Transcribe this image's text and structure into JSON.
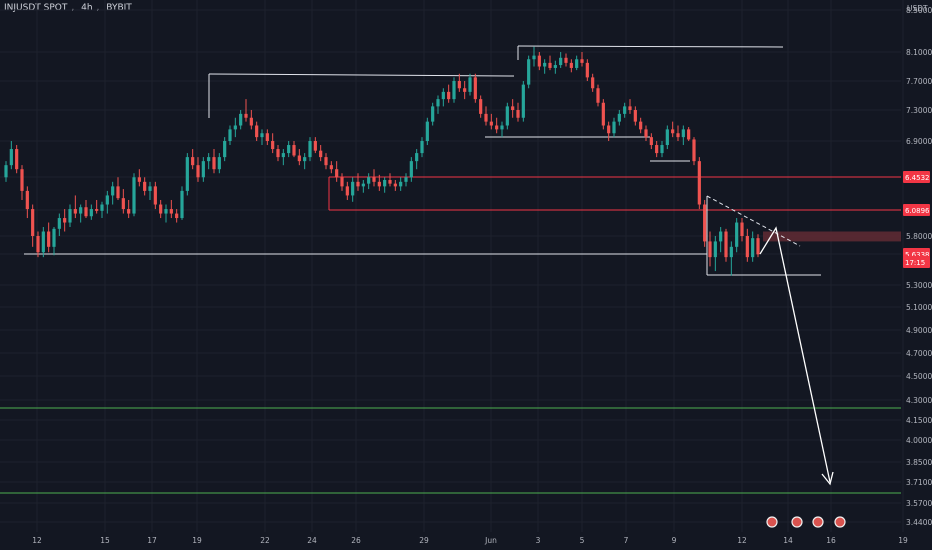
{
  "header": {
    "symbol": "INJUSDT SPOT",
    "interval": "4h",
    "exchange": "BYBIT"
  },
  "currency": "USDT",
  "colors": {
    "bg": "#131722",
    "grid": "#1e222d",
    "up": "#26a69a",
    "down": "#ef5350",
    "white": "#ffffff",
    "red_line": "#f23645",
    "green_line": "#4caf50",
    "axis_text": "#b2b5be"
  },
  "chart_data": {
    "type": "candlestick",
    "y_ticks": [
      "8.5000",
      "8.1000",
      "7.7000",
      "7.3000",
      "6.9000",
      "6.4532",
      "6.0896",
      "5.8000",
      "5.6338",
      "5.3000",
      "5.1000",
      "4.9000",
      "4.7000",
      "4.5000",
      "4.3000",
      "4.1500",
      "4.0000",
      "3.8500",
      "3.7100",
      "3.5700",
      "3.4400"
    ],
    "x_ticks": [
      "12",
      "15",
      "17",
      "19",
      "22",
      "24",
      "26",
      "29",
      "Jun",
      "3",
      "5",
      "7",
      "9",
      "12",
      "14",
      "16",
      "19"
    ],
    "price_labels": [
      {
        "text": "6.4532",
        "value": 6.4532,
        "color": "#f23645"
      },
      {
        "text": "6.0896",
        "value": 6.0896,
        "color": "#f23645"
      },
      {
        "text": "5.6338",
        "value": 5.6338,
        "color": "#f23645"
      },
      {
        "text": "17:15",
        "value": 5.555,
        "color": "#f23645"
      }
    ],
    "last_price": 5.6338,
    "horizontal_lines": [
      {
        "value": 6.4532,
        "from": "26",
        "color": "red"
      },
      {
        "value": 6.0896,
        "from": "26",
        "color": "red"
      },
      {
        "value": 4.25,
        "color": "green"
      },
      {
        "value": 3.62,
        "color": "green"
      }
    ],
    "resistance_zone": [
      5.75,
      5.85
    ],
    "candles": [
      [
        6.45,
        6.65,
        6.4,
        6.6
      ],
      [
        6.6,
        6.9,
        6.55,
        6.8
      ],
      [
        6.8,
        6.85,
        6.5,
        6.55
      ],
      [
        6.55,
        6.6,
        6.2,
        6.3
      ],
      [
        6.3,
        6.35,
        6.0,
        6.1
      ],
      [
        6.1,
        6.15,
        5.7,
        5.8
      ],
      [
        5.8,
        5.85,
        5.6,
        5.65
      ],
      [
        5.65,
        5.9,
        5.6,
        5.85
      ],
      [
        5.85,
        5.95,
        5.65,
        5.7
      ],
      [
        5.7,
        5.9,
        5.62,
        5.88
      ],
      [
        5.88,
        6.05,
        5.8,
        6.0
      ],
      [
        6.0,
        6.1,
        5.85,
        5.95
      ],
      [
        5.95,
        6.15,
        5.9,
        6.1
      ],
      [
        6.1,
        6.25,
        6.0,
        6.05
      ],
      [
        6.05,
        6.15,
        5.95,
        6.12
      ],
      [
        6.12,
        6.2,
        6.0,
        6.02
      ],
      [
        6.02,
        6.15,
        5.98,
        6.1
      ],
      [
        6.1,
        6.2,
        6.05,
        6.08
      ],
      [
        6.08,
        6.18,
        6.0,
        6.15
      ],
      [
        6.15,
        6.3,
        6.05,
        6.25
      ],
      [
        6.25,
        6.4,
        6.15,
        6.35
      ],
      [
        6.35,
        6.45,
        6.2,
        6.22
      ],
      [
        6.22,
        6.32,
        6.05,
        6.1
      ],
      [
        6.1,
        6.2,
        6.0,
        6.05
      ],
      [
        6.05,
        6.5,
        6.02,
        6.45
      ],
      [
        6.45,
        6.55,
        6.35,
        6.4
      ],
      [
        6.4,
        6.45,
        6.25,
        6.3
      ],
      [
        6.3,
        6.4,
        6.2,
        6.35
      ],
      [
        6.35,
        6.4,
        6.1,
        6.15
      ],
      [
        6.15,
        6.2,
        6.0,
        6.05
      ],
      [
        6.05,
        6.15,
        5.95,
        6.1
      ],
      [
        6.1,
        6.2,
        6.0,
        6.05
      ],
      [
        6.05,
        6.1,
        5.95,
        6.0
      ],
      [
        6.0,
        6.35,
        5.98,
        6.3
      ],
      [
        6.3,
        6.75,
        6.25,
        6.7
      ],
      [
        6.7,
        6.8,
        6.55,
        6.6
      ],
      [
        6.6,
        6.7,
        6.4,
        6.45
      ],
      [
        6.45,
        6.7,
        6.4,
        6.65
      ],
      [
        6.65,
        6.75,
        6.55,
        6.7
      ],
      [
        6.7,
        6.8,
        6.5,
        6.55
      ],
      [
        6.55,
        6.75,
        6.5,
        6.7
      ],
      [
        6.7,
        6.95,
        6.65,
        6.9
      ],
      [
        6.9,
        7.1,
        6.85,
        7.05
      ],
      [
        7.05,
        7.2,
        6.95,
        7.1
      ],
      [
        7.1,
        7.3,
        7.05,
        7.25
      ],
      [
        7.25,
        7.45,
        7.15,
        7.2
      ],
      [
        7.2,
        7.3,
        7.05,
        7.1
      ],
      [
        7.1,
        7.15,
        6.9,
        6.95
      ],
      [
        6.95,
        7.05,
        6.85,
        7.0
      ],
      [
        7.0,
        7.05,
        6.85,
        6.9
      ],
      [
        6.9,
        7.0,
        6.75,
        6.8
      ],
      [
        6.8,
        6.85,
        6.65,
        6.7
      ],
      [
        6.7,
        6.8,
        6.6,
        6.75
      ],
      [
        6.75,
        6.9,
        6.7,
        6.85
      ],
      [
        6.85,
        6.9,
        6.7,
        6.72
      ],
      [
        6.72,
        6.8,
        6.6,
        6.65
      ],
      [
        6.65,
        6.75,
        6.55,
        6.7
      ],
      [
        6.7,
        6.95,
        6.65,
        6.9
      ],
      [
        6.9,
        6.95,
        6.75,
        6.78
      ],
      [
        6.78,
        6.85,
        6.65,
        6.7
      ],
      [
        6.7,
        6.75,
        6.55,
        6.6
      ],
      [
        6.6,
        6.65,
        6.5,
        6.55
      ],
      [
        6.55,
        6.65,
        6.4,
        6.45
      ],
      [
        6.45,
        6.5,
        6.3,
        6.35
      ],
      [
        6.35,
        6.4,
        6.2,
        6.25
      ],
      [
        6.25,
        6.45,
        6.18,
        6.4
      ],
      [
        6.4,
        6.5,
        6.3,
        6.35
      ],
      [
        6.35,
        6.42,
        6.28,
        6.38
      ],
      [
        6.38,
        6.5,
        6.32,
        6.45
      ],
      [
        6.45,
        6.55,
        6.35,
        6.4
      ],
      [
        6.4,
        6.48,
        6.3,
        6.35
      ],
      [
        6.35,
        6.45,
        6.28,
        6.42
      ],
      [
        6.42,
        6.5,
        6.35,
        6.38
      ],
      [
        6.38,
        6.42,
        6.3,
        6.35
      ],
      [
        6.35,
        6.45,
        6.3,
        6.4
      ],
      [
        6.4,
        6.5,
        6.35,
        6.45
      ],
      [
        6.45,
        6.7,
        6.4,
        6.65
      ],
      [
        6.65,
        6.8,
        6.55,
        6.75
      ],
      [
        6.75,
        6.95,
        6.7,
        6.9
      ],
      [
        6.9,
        7.2,
        6.85,
        7.15
      ],
      [
        7.15,
        7.4,
        7.1,
        7.35
      ],
      [
        7.35,
        7.5,
        7.25,
        7.45
      ],
      [
        7.45,
        7.6,
        7.35,
        7.55
      ],
      [
        7.55,
        7.65,
        7.4,
        7.45
      ],
      [
        7.45,
        7.75,
        7.4,
        7.7
      ],
      [
        7.7,
        7.8,
        7.55,
        7.6
      ],
      [
        7.6,
        7.7,
        7.45,
        7.55
      ],
      [
        7.55,
        7.8,
        7.5,
        7.75
      ],
      [
        7.75,
        7.8,
        7.4,
        7.45
      ],
      [
        7.45,
        7.5,
        7.2,
        7.25
      ],
      [
        7.25,
        7.35,
        7.1,
        7.15
      ],
      [
        7.15,
        7.25,
        7.05,
        7.1
      ],
      [
        7.1,
        7.2,
        7.0,
        7.05
      ],
      [
        7.05,
        7.15,
        6.95,
        7.1
      ],
      [
        7.1,
        7.4,
        7.05,
        7.35
      ],
      [
        7.35,
        7.45,
        7.2,
        7.3
      ],
      [
        7.3,
        7.4,
        7.15,
        7.2
      ],
      [
        7.2,
        7.7,
        7.15,
        7.65
      ],
      [
        7.65,
        8.05,
        7.6,
        8.0
      ],
      [
        8.0,
        8.15,
        7.9,
        8.05
      ],
      [
        8.05,
        8.1,
        7.85,
        7.9
      ],
      [
        7.9,
        8.0,
        7.8,
        7.95
      ],
      [
        7.95,
        8.05,
        7.85,
        7.88
      ],
      [
        7.88,
        7.98,
        7.8,
        7.92
      ],
      [
        7.92,
        8.1,
        7.88,
        8.02
      ],
      [
        8.02,
        8.08,
        7.9,
        7.95
      ],
      [
        7.95,
        8.0,
        7.82,
        7.88
      ],
      [
        7.88,
        8.05,
        7.85,
        8.0
      ],
      [
        8.0,
        8.1,
        7.9,
        7.95
      ],
      [
        7.95,
        8.0,
        7.7,
        7.75
      ],
      [
        7.75,
        7.8,
        7.55,
        7.6
      ],
      [
        7.6,
        7.65,
        7.35,
        7.4
      ],
      [
        7.4,
        7.45,
        7.05,
        7.1
      ],
      [
        7.1,
        7.15,
        6.9,
        7.0
      ],
      [
        7.0,
        7.2,
        6.95,
        7.15
      ],
      [
        7.15,
        7.3,
        7.1,
        7.25
      ],
      [
        7.25,
        7.4,
        7.2,
        7.35
      ],
      [
        7.35,
        7.45,
        7.25,
        7.3
      ],
      [
        7.3,
        7.35,
        7.1,
        7.15
      ],
      [
        7.15,
        7.2,
        7.0,
        7.05
      ],
      [
        7.05,
        7.1,
        6.9,
        6.95
      ],
      [
        6.95,
        7.0,
        6.8,
        6.85
      ],
      [
        6.85,
        6.9,
        6.7,
        6.75
      ],
      [
        6.75,
        6.9,
        6.7,
        6.85
      ],
      [
        6.85,
        7.1,
        6.8,
        7.05
      ],
      [
        7.05,
        7.15,
        6.95,
        7.0
      ],
      [
        7.0,
        7.1,
        6.9,
        6.95
      ],
      [
        6.95,
        7.1,
        6.85,
        7.05
      ],
      [
        7.05,
        7.08,
        6.9,
        6.92
      ],
      [
        6.92,
        6.95,
        6.6,
        6.65
      ],
      [
        6.65,
        6.7,
        6.1,
        6.15
      ],
      [
        6.15,
        6.2,
        5.7,
        5.75
      ],
      [
        5.75,
        5.85,
        5.5,
        5.6
      ],
      [
        5.6,
        5.8,
        5.45,
        5.75
      ],
      [
        5.75,
        5.9,
        5.65,
        5.85
      ],
      [
        5.85,
        5.88,
        5.55,
        5.6
      ],
      [
        5.6,
        5.75,
        5.4,
        5.7
      ],
      [
        5.7,
        6.0,
        5.65,
        5.95
      ],
      [
        5.95,
        6.0,
        5.75,
        5.8
      ],
      [
        5.8,
        5.88,
        5.55,
        5.6
      ],
      [
        5.6,
        5.85,
        5.55,
        5.78
      ],
      [
        5.78,
        5.82,
        5.6,
        5.63
      ]
    ],
    "annotations": [
      "rectangle 1 from ~May 19 to ~May 30 top 7.75",
      "rectangle around May 31-Jun 2 top 8.2",
      "support lines near 5.6 and 5.40",
      "arrow down to ~3.70 near Jun 16"
    ],
    "legend": []
  }
}
